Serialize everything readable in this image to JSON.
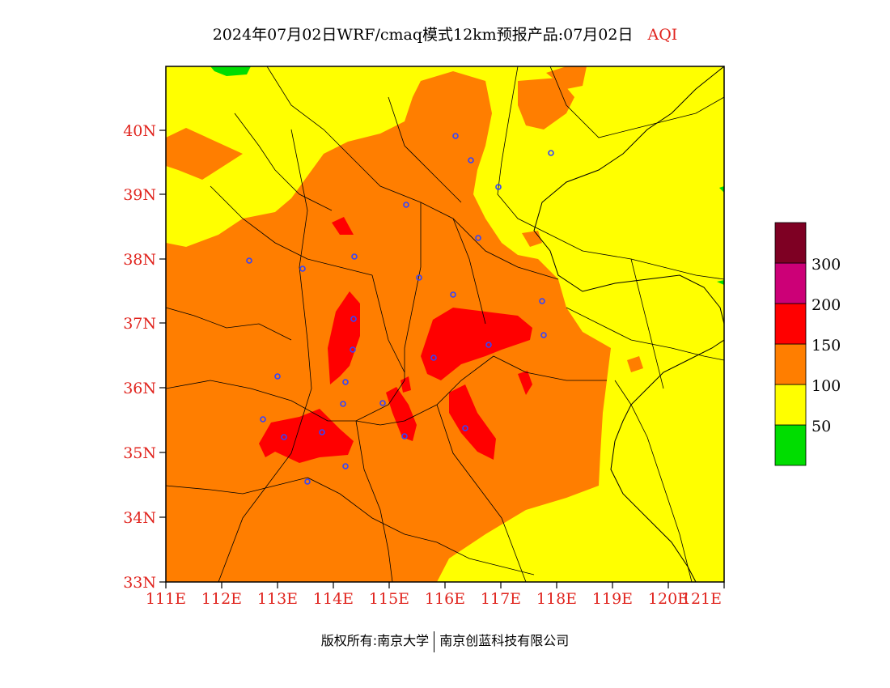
{
  "title": {
    "main": "2024年07月02日WRF/cmaq模式12km预报产品:07月02日",
    "variable": "AQI"
  },
  "axes": {
    "lon_ticks": [
      "111E",
      "112E",
      "113E",
      "114E",
      "115E",
      "116E",
      "117E",
      "118E",
      "119E",
      "120E",
      "121E"
    ],
    "lat_ticks": [
      "33N",
      "34N",
      "35N",
      "36N",
      "37N",
      "38N",
      "39N",
      "40N"
    ]
  },
  "legend": {
    "labels": [
      "50",
      "100",
      "150",
      "200",
      "300"
    ],
    "colors": [
      "#00dd00",
      "#ffff00",
      "#ff7e00",
      "#ff0000",
      "#cc0077",
      "#7e0023"
    ]
  },
  "footer": {
    "left": "版权所有:南京大学",
    "right": "南京创蓝科技有限公司"
  }
}
